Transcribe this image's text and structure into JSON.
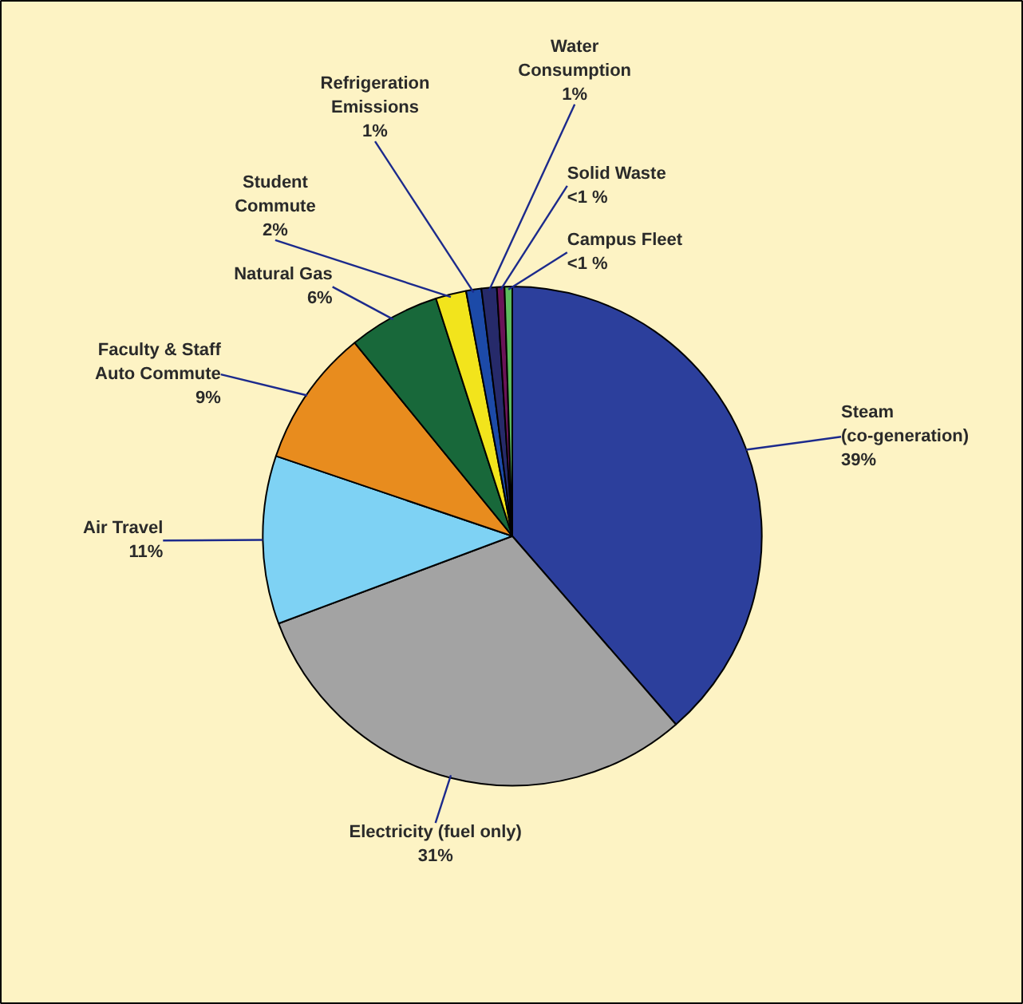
{
  "chart_data": {
    "type": "pie",
    "categories": [
      "Steam\n(co-generation)",
      "Electricity (fuel only)",
      "Air Travel",
      "Faculty & Staff\nAuto Commute",
      "Natural Gas",
      "Student\nCommute",
      "Refrigeration\nEmissions",
      "Water\nConsumption",
      "Solid Waste",
      "Campus Fleet"
    ],
    "values": [
      39,
      31,
      11,
      9,
      6,
      2,
      1,
      1,
      0.5,
      0.5
    ],
    "value_labels": [
      "39%",
      "31%",
      "11%",
      "9%",
      "6%",
      "2%",
      "1%",
      "1%",
      "<1 %",
      "<1 %"
    ],
    "colors": [
      "#2c3f9c",
      "#a3a3a3",
      "#7ed2f4",
      "#e88c1e",
      "#18683a",
      "#f2e41c",
      "#1c4aa8",
      "#262a6a",
      "#6a1458",
      "#5cbc5c"
    ]
  }
}
